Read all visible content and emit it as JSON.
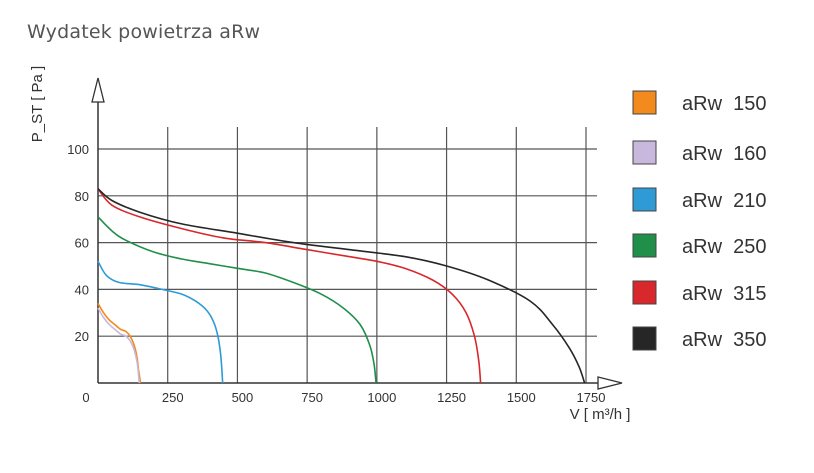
{
  "page": {
    "title": "Wydatek powietrza aRw"
  },
  "chart_data": {
    "type": "line",
    "title": "Wydatek powietrza aRw",
    "xlabel": "V [ m³/h ]",
    "ylabel": "P_ST [ Pa ]",
    "xlim": [
      0,
      1750
    ],
    "ylim": [
      0,
      100
    ],
    "x_ticks": [
      0,
      250,
      500,
      750,
      1000,
      1250,
      1500,
      1750
    ],
    "y_ticks": [
      20,
      40,
      60,
      80,
      100
    ],
    "grid": true,
    "legend_position": "right",
    "series": [
      {
        "name": "aRw  150",
        "color": "#f28a1e",
        "points": [
          [
            0,
            34
          ],
          [
            20,
            30
          ],
          [
            40,
            27
          ],
          [
            60,
            25
          ],
          [
            80,
            23
          ],
          [
            100,
            22
          ],
          [
            115,
            20
          ],
          [
            130,
            16
          ],
          [
            140,
            11
          ],
          [
            145,
            6
          ],
          [
            150,
            2
          ],
          [
            152,
            0
          ]
        ]
      },
      {
        "name": "aRw  160",
        "color": "#c9b8de",
        "points": [
          [
            0,
            32
          ],
          [
            20,
            28
          ],
          [
            40,
            25
          ],
          [
            60,
            23
          ],
          [
            80,
            21
          ],
          [
            100,
            20
          ],
          [
            115,
            18
          ],
          [
            130,
            14
          ],
          [
            140,
            9
          ],
          [
            145,
            4
          ],
          [
            148,
            0
          ]
        ]
      },
      {
        "name": "aRw  210",
        "color": "#2e9ad6",
        "points": [
          [
            0,
            52
          ],
          [
            30,
            46
          ],
          [
            75,
            43
          ],
          [
            150,
            42
          ],
          [
            230,
            40
          ],
          [
            300,
            38
          ],
          [
            350,
            35
          ],
          [
            390,
            31
          ],
          [
            415,
            26
          ],
          [
            430,
            20
          ],
          [
            440,
            12
          ],
          [
            445,
            4
          ],
          [
            447,
            0
          ]
        ]
      },
      {
        "name": "aRw  250",
        "color": "#1f8f4a",
        "points": [
          [
            0,
            71
          ],
          [
            50,
            65
          ],
          [
            100,
            61
          ],
          [
            200,
            56
          ],
          [
            300,
            53
          ],
          [
            400,
            51
          ],
          [
            500,
            49
          ],
          [
            600,
            47
          ],
          [
            700,
            43
          ],
          [
            800,
            38
          ],
          [
            880,
            32
          ],
          [
            940,
            25
          ],
          [
            975,
            16
          ],
          [
            990,
            8
          ],
          [
            997,
            0
          ]
        ]
      },
      {
        "name": "aRw  315",
        "color": "#d8282b",
        "points": [
          [
            0,
            83
          ],
          [
            50,
            76
          ],
          [
            150,
            71
          ],
          [
            300,
            66
          ],
          [
            450,
            62
          ],
          [
            600,
            60
          ],
          [
            750,
            57
          ],
          [
            900,
            54
          ],
          [
            1000,
            52
          ],
          [
            1100,
            49
          ],
          [
            1200,
            44
          ],
          [
            1270,
            38
          ],
          [
            1320,
            30
          ],
          [
            1350,
            20
          ],
          [
            1365,
            10
          ],
          [
            1372,
            0
          ]
        ]
      },
      {
        "name": "aRw  350",
        "color": "#262626",
        "points": [
          [
            0,
            83
          ],
          [
            50,
            78
          ],
          [
            150,
            73
          ],
          [
            300,
            68
          ],
          [
            500,
            64
          ],
          [
            700,
            60
          ],
          [
            900,
            57
          ],
          [
            1100,
            54
          ],
          [
            1250,
            50
          ],
          [
            1400,
            44
          ],
          [
            1550,
            35
          ],
          [
            1630,
            25
          ],
          [
            1690,
            15
          ],
          [
            1725,
            7
          ],
          [
            1745,
            0
          ]
        ]
      }
    ]
  }
}
